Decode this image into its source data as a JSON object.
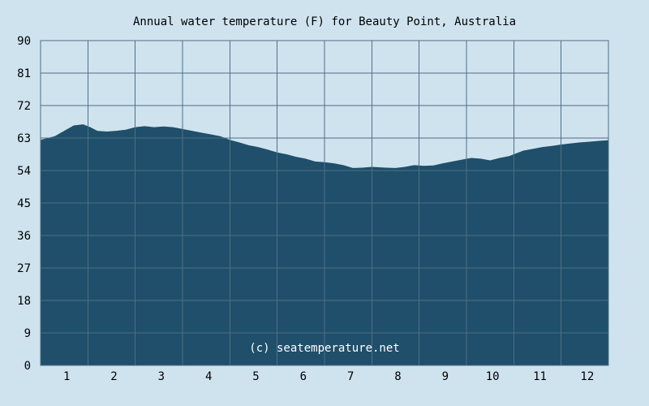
{
  "chart_data": {
    "type": "area",
    "title": "Annual water temperature (F) for Beauty Point, Australia",
    "xlabel": "",
    "ylabel": "",
    "x_tick_labels": [
      "1",
      "2",
      "3",
      "4",
      "5",
      "6",
      "7",
      "8",
      "9",
      "10",
      "11",
      "12"
    ],
    "y_tick_labels": [
      "0",
      "9",
      "18",
      "27",
      "36",
      "45",
      "54",
      "63",
      "72",
      "81",
      "90"
    ],
    "xlim": [
      0.5,
      12.5
    ],
    "ylim": [
      0,
      90
    ],
    "grid": true,
    "watermark": "(c) seatemperature.net",
    "colors": {
      "background": "#cfe3ef",
      "fill": "#1f4f6a",
      "grid": "#4f6f86"
    },
    "series": [
      {
        "x": [
          0.5,
          0.8,
          1.0,
          1.2,
          1.4,
          1.55,
          1.7,
          1.9,
          2.1,
          2.3,
          2.5,
          2.7,
          2.9,
          3.1,
          3.3,
          3.5,
          3.7,
          3.9,
          4.1,
          4.3,
          4.5,
          4.7,
          4.9,
          5.1,
          5.3,
          5.5,
          5.7,
          5.9,
          6.1,
          6.3,
          6.5,
          6.7,
          6.9,
          7.1,
          7.3,
          7.5,
          7.65,
          7.8,
          8.0,
          8.2,
          8.4,
          8.6,
          8.8,
          9.0,
          9.2,
          9.4,
          9.6,
          9.8,
          10.0,
          10.2,
          10.4,
          10.5,
          10.7,
          10.9,
          11.1,
          11.3,
          11.5,
          11.7,
          11.9,
          12.1,
          12.3,
          12.5
        ],
        "values": [
          62.5,
          63.5,
          65.0,
          66.5,
          66.8,
          66.0,
          65.0,
          64.8,
          65.0,
          65.3,
          66.0,
          66.3,
          66.0,
          66.2,
          66.0,
          65.5,
          65.0,
          64.5,
          64.0,
          63.5,
          62.5,
          61.8,
          61.0,
          60.5,
          59.8,
          59.0,
          58.5,
          57.8,
          57.3,
          56.5,
          56.3,
          56.0,
          55.5,
          54.7,
          54.8,
          55.0,
          54.9,
          54.8,
          54.7,
          55.0,
          55.5,
          55.3,
          55.4,
          56.0,
          56.5,
          57.0,
          57.5,
          57.3,
          56.8,
          57.5,
          58.0,
          58.5,
          59.5,
          60.0,
          60.5,
          60.8,
          61.2,
          61.5,
          61.8,
          62.0,
          62.2,
          62.4
        ]
      }
    ]
  }
}
